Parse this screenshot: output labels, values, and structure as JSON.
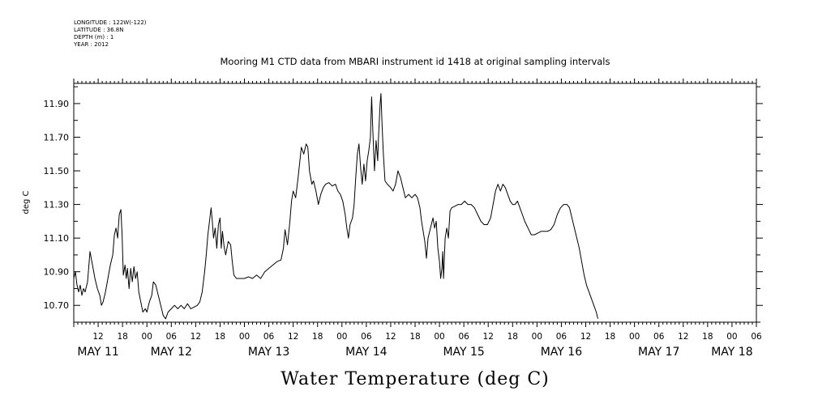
{
  "meta": {
    "longitude": "LONGITUDE : 122W(-122)",
    "latitude": "LATITUDE : 36.8N",
    "depth": "DEPTH (m) : 1",
    "year": "YEAR : 2012"
  },
  "chart_data": {
    "type": "line",
    "title": "Mooring M1 CTD data from MBARI instrument id 1418 at original sampling intervals",
    "xlabel": "Water Temperature (deg C)",
    "ylabel": "deg C",
    "ylim": [
      10.6,
      12.02
    ],
    "xlim_hours": [
      6,
      174
    ],
    "yticks": [
      "11.90",
      "11.70",
      "11.50",
      "11.30",
      "11.10",
      "10.90",
      "10.70"
    ],
    "hour_ticks": [
      {
        "t": 12,
        "label": "12"
      },
      {
        "t": 18,
        "label": "18"
      },
      {
        "t": 24,
        "label": "00"
      },
      {
        "t": 30,
        "label": "06"
      },
      {
        "t": 36,
        "label": "12"
      },
      {
        "t": 42,
        "label": "18"
      },
      {
        "t": 48,
        "label": "00"
      },
      {
        "t": 54,
        "label": "06"
      },
      {
        "t": 60,
        "label": "12"
      },
      {
        "t": 66,
        "label": "18"
      },
      {
        "t": 72,
        "label": "00"
      },
      {
        "t": 78,
        "label": "06"
      },
      {
        "t": 84,
        "label": "12"
      },
      {
        "t": 90,
        "label": "18"
      },
      {
        "t": 96,
        "label": "00"
      },
      {
        "t": 102,
        "label": "06"
      },
      {
        "t": 108,
        "label": "12"
      },
      {
        "t": 114,
        "label": "18"
      },
      {
        "t": 120,
        "label": "00"
      },
      {
        "t": 126,
        "label": "06"
      },
      {
        "t": 132,
        "label": "12"
      },
      {
        "t": 138,
        "label": "18"
      },
      {
        "t": 144,
        "label": "00"
      },
      {
        "t": 150,
        "label": "06"
      },
      {
        "t": 156,
        "label": "12"
      },
      {
        "t": 162,
        "label": "18"
      },
      {
        "t": 168,
        "label": "00"
      },
      {
        "t": 174,
        "label": "06"
      }
    ],
    "day_labels": [
      {
        "t": 12,
        "label": "MAY 11"
      },
      {
        "t": 30,
        "label": "MAY 12"
      },
      {
        "t": 54,
        "label": "MAY 13"
      },
      {
        "t": 78,
        "label": "MAY 14"
      },
      {
        "t": 102,
        "label": "MAY 15"
      },
      {
        "t": 126,
        "label": "MAY 16"
      },
      {
        "t": 150,
        "label": "MAY 17"
      },
      {
        "t": 168,
        "label": "MAY 18"
      }
    ],
    "series": [
      {
        "color": "#000000",
        "points": [
          [
            6.0,
            10.86
          ],
          [
            6.4,
            10.9
          ],
          [
            6.8,
            10.82
          ],
          [
            7.2,
            10.78
          ],
          [
            7.6,
            10.82
          ],
          [
            8.0,
            10.76
          ],
          [
            8.4,
            10.8
          ],
          [
            8.8,
            10.78
          ],
          [
            9.4,
            10.84
          ],
          [
            10.0,
            11.02
          ],
          [
            10.6,
            10.94
          ],
          [
            11.2,
            10.86
          ],
          [
            11.8,
            10.8
          ],
          [
            12.4,
            10.76
          ],
          [
            12.8,
            10.7
          ],
          [
            13.2,
            10.72
          ],
          [
            13.8,
            10.78
          ],
          [
            14.4,
            10.86
          ],
          [
            15.0,
            10.94
          ],
          [
            15.6,
            11.0
          ],
          [
            16.0,
            11.12
          ],
          [
            16.4,
            11.16
          ],
          [
            16.8,
            11.1
          ],
          [
            17.2,
            11.24
          ],
          [
            17.6,
            11.27
          ],
          [
            17.9,
            11.12
          ],
          [
            18.2,
            10.88
          ],
          [
            18.6,
            10.94
          ],
          [
            18.9,
            10.86
          ],
          [
            19.2,
            10.92
          ],
          [
            19.6,
            10.8
          ],
          [
            20.0,
            10.92
          ],
          [
            20.4,
            10.84
          ],
          [
            20.8,
            10.93
          ],
          [
            21.2,
            10.86
          ],
          [
            21.6,
            10.9
          ],
          [
            22.0,
            10.78
          ],
          [
            22.5,
            10.72
          ],
          [
            23.0,
            10.66
          ],
          [
            23.6,
            10.68
          ],
          [
            24.0,
            10.66
          ],
          [
            24.6,
            10.72
          ],
          [
            25.2,
            10.76
          ],
          [
            25.6,
            10.84
          ],
          [
            26.2,
            10.82
          ],
          [
            26.8,
            10.76
          ],
          [
            27.4,
            10.7
          ],
          [
            28.0,
            10.64
          ],
          [
            28.6,
            10.62
          ],
          [
            29.2,
            10.66
          ],
          [
            30.0,
            10.68
          ],
          [
            30.8,
            10.7
          ],
          [
            31.6,
            10.68
          ],
          [
            32.4,
            10.7
          ],
          [
            33.2,
            10.68
          ],
          [
            34.0,
            10.71
          ],
          [
            34.8,
            10.68
          ],
          [
            35.6,
            10.69
          ],
          [
            36.4,
            10.7
          ],
          [
            37.0,
            10.72
          ],
          [
            37.6,
            10.78
          ],
          [
            38.2,
            10.9
          ],
          [
            38.6,
            11.0
          ],
          [
            39.0,
            11.12
          ],
          [
            39.4,
            11.2
          ],
          [
            39.8,
            11.28
          ],
          [
            40.1,
            11.2
          ],
          [
            40.4,
            11.1
          ],
          [
            40.8,
            11.16
          ],
          [
            41.2,
            11.04
          ],
          [
            41.6,
            11.18
          ],
          [
            42.0,
            11.22
          ],
          [
            42.3,
            11.04
          ],
          [
            42.6,
            11.14
          ],
          [
            43.0,
            11.05
          ],
          [
            43.4,
            11.0
          ],
          [
            44.0,
            11.08
          ],
          [
            44.6,
            11.06
          ],
          [
            45.0,
            10.96
          ],
          [
            45.4,
            10.88
          ],
          [
            46.0,
            10.86
          ],
          [
            47.0,
            10.86
          ],
          [
            48.0,
            10.86
          ],
          [
            49.0,
            10.87
          ],
          [
            50.0,
            10.86
          ],
          [
            51.0,
            10.88
          ],
          [
            52.0,
            10.86
          ],
          [
            53.0,
            10.9
          ],
          [
            54.0,
            10.92
          ],
          [
            55.0,
            10.94
          ],
          [
            56.0,
            10.96
          ],
          [
            57.0,
            10.97
          ],
          [
            57.6,
            11.04
          ],
          [
            58.0,
            11.15
          ],
          [
            58.6,
            11.06
          ],
          [
            59.2,
            11.2
          ],
          [
            59.6,
            11.32
          ],
          [
            60.0,
            11.38
          ],
          [
            60.6,
            11.34
          ],
          [
            61.2,
            11.46
          ],
          [
            61.6,
            11.55
          ],
          [
            62.0,
            11.64
          ],
          [
            62.6,
            11.6
          ],
          [
            63.2,
            11.66
          ],
          [
            63.6,
            11.64
          ],
          [
            64.0,
            11.5
          ],
          [
            64.6,
            11.42
          ],
          [
            65.0,
            11.44
          ],
          [
            65.6,
            11.38
          ],
          [
            66.2,
            11.3
          ],
          [
            66.8,
            11.36
          ],
          [
            67.4,
            11.4
          ],
          [
            68.0,
            11.42
          ],
          [
            68.8,
            11.43
          ],
          [
            69.6,
            11.41
          ],
          [
            70.4,
            11.42
          ],
          [
            71.0,
            11.38
          ],
          [
            71.6,
            11.36
          ],
          [
            72.2,
            11.32
          ],
          [
            72.8,
            11.24
          ],
          [
            73.2,
            11.16
          ],
          [
            73.6,
            11.1
          ],
          [
            74.0,
            11.18
          ],
          [
            74.6,
            11.22
          ],
          [
            75.0,
            11.3
          ],
          [
            75.4,
            11.46
          ],
          [
            75.8,
            11.6
          ],
          [
            76.2,
            11.66
          ],
          [
            76.6,
            11.52
          ],
          [
            77.0,
            11.42
          ],
          [
            77.4,
            11.54
          ],
          [
            77.8,
            11.44
          ],
          [
            78.2,
            11.56
          ],
          [
            78.6,
            11.62
          ],
          [
            79.0,
            11.7
          ],
          [
            79.3,
            11.94
          ],
          [
            79.6,
            11.74
          ],
          [
            80.0,
            11.5
          ],
          [
            80.4,
            11.68
          ],
          [
            80.8,
            11.56
          ],
          [
            81.0,
            11.7
          ],
          [
            81.4,
            11.9
          ],
          [
            81.6,
            11.96
          ],
          [
            81.9,
            11.76
          ],
          [
            82.2,
            11.6
          ],
          [
            82.6,
            11.44
          ],
          [
            83.2,
            11.42
          ],
          [
            84.0,
            11.4
          ],
          [
            84.6,
            11.38
          ],
          [
            85.2,
            11.42
          ],
          [
            85.8,
            11.5
          ],
          [
            86.4,
            11.46
          ],
          [
            87.0,
            11.4
          ],
          [
            87.6,
            11.34
          ],
          [
            88.4,
            11.36
          ],
          [
            89.2,
            11.34
          ],
          [
            90.0,
            11.36
          ],
          [
            90.6,
            11.34
          ],
          [
            91.2,
            11.28
          ],
          [
            91.6,
            11.2
          ],
          [
            92.0,
            11.14
          ],
          [
            92.4,
            11.08
          ],
          [
            92.8,
            10.98
          ],
          [
            93.2,
            11.1
          ],
          [
            93.6,
            11.14
          ],
          [
            94.0,
            11.18
          ],
          [
            94.4,
            11.22
          ],
          [
            94.8,
            11.16
          ],
          [
            95.2,
            11.2
          ],
          [
            95.6,
            11.04
          ],
          [
            96.0,
            10.96
          ],
          [
            96.3,
            10.86
          ],
          [
            96.6,
            10.92
          ],
          [
            96.8,
            11.02
          ],
          [
            97.0,
            10.86
          ],
          [
            97.4,
            11.1
          ],
          [
            97.8,
            11.16
          ],
          [
            98.2,
            11.1
          ],
          [
            98.6,
            11.26
          ],
          [
            99.0,
            11.28
          ],
          [
            99.8,
            11.29
          ],
          [
            100.6,
            11.3
          ],
          [
            101.4,
            11.3
          ],
          [
            102.2,
            11.32
          ],
          [
            103.0,
            11.3
          ],
          [
            103.8,
            11.3
          ],
          [
            104.6,
            11.28
          ],
          [
            105.4,
            11.24
          ],
          [
            106.2,
            11.2
          ],
          [
            107.0,
            11.18
          ],
          [
            107.8,
            11.18
          ],
          [
            108.6,
            11.22
          ],
          [
            109.2,
            11.3
          ],
          [
            109.8,
            11.38
          ],
          [
            110.4,
            11.42
          ],
          [
            111.0,
            11.38
          ],
          [
            111.6,
            11.42
          ],
          [
            112.2,
            11.4
          ],
          [
            112.8,
            11.36
          ],
          [
            113.4,
            11.32
          ],
          [
            114.0,
            11.3
          ],
          [
            114.6,
            11.3
          ],
          [
            115.2,
            11.32
          ],
          [
            115.8,
            11.28
          ],
          [
            116.4,
            11.24
          ],
          [
            117.0,
            11.2
          ],
          [
            117.8,
            11.16
          ],
          [
            118.6,
            11.12
          ],
          [
            119.4,
            11.12
          ],
          [
            120.2,
            11.13
          ],
          [
            121.0,
            11.14
          ],
          [
            121.8,
            11.14
          ],
          [
            122.6,
            11.14
          ],
          [
            123.4,
            11.15
          ],
          [
            124.2,
            11.18
          ],
          [
            125.0,
            11.24
          ],
          [
            125.8,
            11.28
          ],
          [
            126.6,
            11.3
          ],
          [
            127.4,
            11.3
          ],
          [
            128.0,
            11.28
          ],
          [
            128.6,
            11.22
          ],
          [
            129.2,
            11.16
          ],
          [
            129.8,
            11.1
          ],
          [
            130.4,
            11.04
          ],
          [
            131.0,
            10.96
          ],
          [
            131.6,
            10.88
          ],
          [
            132.2,
            10.82
          ],
          [
            132.8,
            10.78
          ],
          [
            133.4,
            10.74
          ],
          [
            134.0,
            10.7
          ],
          [
            134.6,
            10.66
          ],
          [
            135.0,
            10.62
          ]
        ]
      }
    ]
  }
}
